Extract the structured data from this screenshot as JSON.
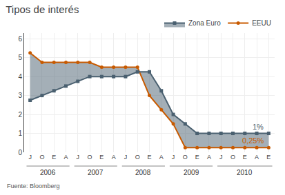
{
  "chart_data": {
    "type": "line",
    "title": "Tipos de interés",
    "categories": [
      "J",
      "O",
      "E",
      "A",
      "J",
      "O",
      "E",
      "A",
      "J",
      "O",
      "E",
      "A",
      "J",
      "O",
      "E",
      "A",
      "J",
      "O",
      "E",
      "A",
      "E"
    ],
    "series": [
      {
        "name": "EEUU",
        "color": "#c85a00",
        "marker": "circle",
        "values": [
          5.25,
          4.75,
          4.75,
          4.75,
          4.75,
          4.75,
          4.5,
          4.5,
          4.5,
          4.5,
          3.0,
          2.25,
          1.5,
          0.25,
          0.25,
          0.25,
          0.25,
          0.25,
          0.25,
          0.25,
          0.25
        ]
      },
      {
        "name": "Zona Euro",
        "color": "#4a6070",
        "marker": "square",
        "values": [
          2.75,
          3.0,
          3.25,
          3.5,
          3.75,
          4.0,
          4.0,
          4.0,
          4.0,
          4.25,
          4.25,
          3.25,
          2.0,
          1.5,
          1.0,
          1.0,
          1.0,
          1.0,
          1.0,
          1.0,
          1.0
        ]
      }
    ],
    "annotations": [
      {
        "text": "0,25%",
        "series": "EEUU"
      },
      {
        "text": "1%",
        "series": "Zona Euro"
      },
      {
        "text": "2006",
        "x": [
          0,
          3
        ]
      },
      {
        "text": "2007",
        "x": [
          4,
          7
        ]
      },
      {
        "text": "2008",
        "x": [
          8,
          11
        ]
      },
      {
        "text": "2009",
        "x": [
          12,
          15
        ]
      },
      {
        "text": "2010",
        "x": [
          16,
          20
        ]
      },
      {
        "text": "Fuente: Bloomberg"
      }
    ],
    "ylim": [
      0,
      6.3
    ],
    "yticks": [
      0,
      1,
      2,
      3,
      4,
      5,
      6
    ],
    "grid": true,
    "legend": "top right"
  }
}
